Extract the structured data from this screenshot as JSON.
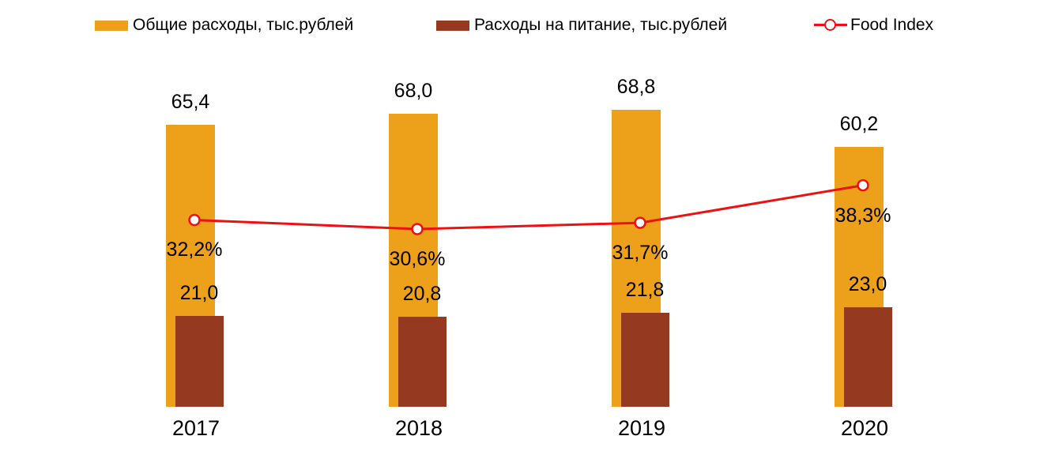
{
  "legend": {
    "items": [
      {
        "label": "Общие расходы, тыс.рублей",
        "color": "#EDA01A",
        "marker": "bar-swatch"
      },
      {
        "label": "Расходы на питание, тыс.рублей",
        "color": "#953A20",
        "marker": "bar-swatch"
      },
      {
        "label": "Food Index",
        "color": "#EE1111",
        "marker": "line-open-circle"
      }
    ]
  },
  "chart_data": {
    "type": "bar",
    "subtype": "bar+line-combo",
    "categories": [
      "2017",
      "2018",
      "2019",
      "2020"
    ],
    "series": [
      {
        "name": "Общие расходы, тыс.рублей",
        "type": "bar",
        "color": "#EDA01A",
        "values": [
          65.4,
          68.0,
          68.8,
          60.2
        ],
        "labels": [
          "65,4",
          "68,0",
          "68,8",
          "60,2"
        ]
      },
      {
        "name": "Расходы на питание, тыс.рублей",
        "type": "bar",
        "color": "#953A20",
        "values": [
          21.0,
          20.8,
          21.8,
          23.0
        ],
        "labels": [
          "21,0",
          "20,8",
          "21,8",
          "23,0"
        ]
      },
      {
        "name": "Food Index",
        "type": "line",
        "axis": "secondary",
        "color": "#EE1111",
        "marker": "open-circle",
        "values": [
          32.2,
          30.6,
          31.7,
          38.3
        ],
        "labels": [
          "32,2%",
          "30,6%",
          "31,7%",
          "38,3%"
        ]
      }
    ],
    "title": "",
    "xlabel": "",
    "ylabel": "",
    "value_axis_visible": false,
    "gridlines": false,
    "legend_position": "top",
    "background": "#FFFFFF",
    "text_color": "#000000"
  }
}
